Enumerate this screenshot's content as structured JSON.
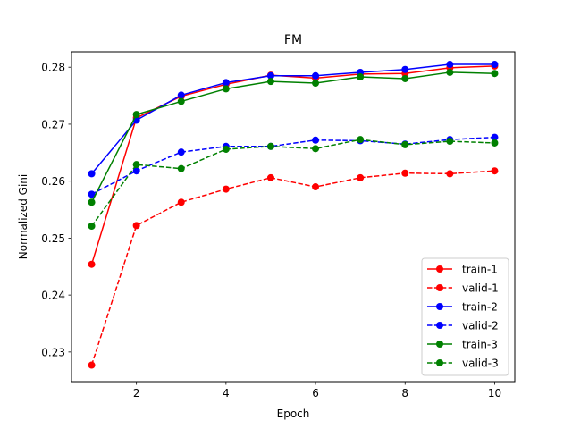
{
  "chart_data": {
    "type": "line",
    "title": "FM",
    "xlabel": "Epoch",
    "ylabel": "Normalized Gini",
    "xlim": [
      0.55,
      10.45
    ],
    "ylim": [
      0.2248,
      0.2827
    ],
    "xticks": [
      2,
      4,
      6,
      8,
      10
    ],
    "yticks": [
      0.23,
      0.24,
      0.25,
      0.26,
      0.27,
      0.28
    ],
    "ytick_labels": [
      "0.23",
      "0.24",
      "0.25",
      "0.26",
      "0.27",
      "0.28"
    ],
    "grid": false,
    "legend_position": "lower-right",
    "x": [
      1,
      2,
      3,
      4,
      5,
      6,
      7,
      8,
      9,
      10
    ],
    "series": [
      {
        "name": "train-1",
        "color": "#ff0000",
        "style": "solid",
        "values": [
          0.2454,
          0.2711,
          0.2749,
          0.277,
          0.2786,
          0.2781,
          0.2788,
          0.2789,
          0.2799,
          0.2802
        ]
      },
      {
        "name": "valid-1",
        "color": "#ff0000",
        "style": "dashed",
        "values": [
          0.2277,
          0.2522,
          0.2563,
          0.2586,
          0.2606,
          0.259,
          0.2606,
          0.2614,
          0.2613,
          0.2618
        ]
      },
      {
        "name": "train-2",
        "color": "#0000ff",
        "style": "solid",
        "values": [
          0.2613,
          0.2707,
          0.2751,
          0.2773,
          0.2785,
          0.2785,
          0.2791,
          0.2796,
          0.2805,
          0.2805
        ]
      },
      {
        "name": "valid-2",
        "color": "#0000ff",
        "style": "dashed",
        "values": [
          0.2577,
          0.2618,
          0.2651,
          0.2661,
          0.2661,
          0.2672,
          0.2671,
          0.2665,
          0.2673,
          0.2677
        ]
      },
      {
        "name": "train-3",
        "color": "#008000",
        "style": "solid",
        "values": [
          0.2563,
          0.2717,
          0.274,
          0.2762,
          0.2775,
          0.2772,
          0.2783,
          0.278,
          0.2791,
          0.2789
        ]
      },
      {
        "name": "valid-3",
        "color": "#008000",
        "style": "dashed",
        "values": [
          0.2521,
          0.2629,
          0.2622,
          0.2656,
          0.2661,
          0.2657,
          0.2673,
          0.2664,
          0.267,
          0.2667
        ]
      }
    ]
  }
}
